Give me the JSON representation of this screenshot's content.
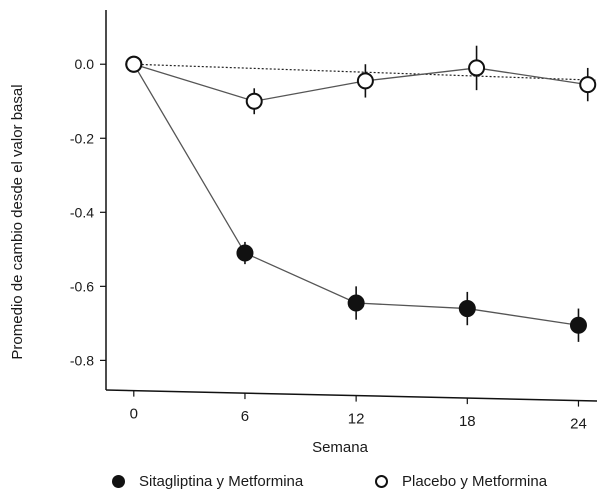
{
  "chart_data": {
    "type": "line",
    "title": "",
    "xlabel": "Semana",
    "ylabel": "Promedio de cambio desde el valor basal",
    "x_ticks": [
      0,
      6,
      12,
      18,
      24
    ],
    "y_ticks": [
      "0.0",
      "-0.2",
      "-0.4",
      "-0.6",
      "-0.8"
    ],
    "y_tick_values": [
      0.0,
      -0.2,
      -0.4,
      -0.6,
      -0.8
    ],
    "xlim": [
      -1.5,
      25
    ],
    "ylim": [
      -0.88,
      0.16
    ],
    "grid": false,
    "legend_position": "bottom",
    "reference_line_y": 0.0,
    "series": [
      {
        "name": "Sitagliptina y Metformina",
        "marker": "filled-circle",
        "color": "#111111",
        "x": [
          0,
          6,
          12,
          18,
          24
        ],
        "y": [
          0.0,
          -0.51,
          -0.645,
          -0.66,
          -0.705
        ],
        "err": [
          0.0,
          0.03,
          0.045,
          0.045,
          0.045
        ]
      },
      {
        "name": "Placebo y Metformina",
        "marker": "open-circle",
        "color": "#111111",
        "x": [
          0,
          6.5,
          12.5,
          18.5,
          24.5
        ],
        "y": [
          0.0,
          -0.1,
          -0.045,
          -0.01,
          -0.055
        ],
        "err": [
          0.0,
          0.035,
          0.045,
          0.06,
          0.045
        ]
      }
    ]
  }
}
